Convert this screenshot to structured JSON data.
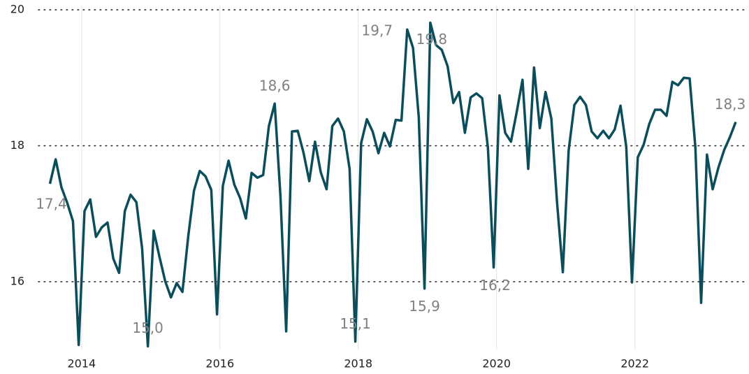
{
  "chart_data": {
    "type": "line",
    "x": [
      2013.542,
      2013.625,
      2013.708,
      2013.792,
      2013.875,
      2013.958,
      2014.042,
      2014.125,
      2014.208,
      2014.292,
      2014.375,
      2014.458,
      2014.542,
      2014.625,
      2014.708,
      2014.792,
      2014.875,
      2014.958,
      2015.042,
      2015.125,
      2015.208,
      2015.292,
      2015.375,
      2015.458,
      2015.542,
      2015.625,
      2015.708,
      2015.792,
      2015.875,
      2015.958,
      2016.042,
      2016.125,
      2016.208,
      2016.292,
      2016.375,
      2016.458,
      2016.542,
      2016.625,
      2016.708,
      2016.792,
      2016.875,
      2016.958,
      2017.042,
      2017.125,
      2017.208,
      2017.292,
      2017.375,
      2017.458,
      2017.542,
      2017.625,
      2017.708,
      2017.792,
      2017.875,
      2017.958,
      2018.042,
      2018.125,
      2018.208,
      2018.292,
      2018.375,
      2018.458,
      2018.542,
      2018.625,
      2018.708,
      2018.792,
      2018.875,
      2018.958,
      2019.042,
      2019.125,
      2019.208,
      2019.292,
      2019.375,
      2019.458,
      2019.542,
      2019.625,
      2019.708,
      2019.792,
      2019.875,
      2019.958,
      2020.042,
      2020.125,
      2020.208,
      2020.292,
      2020.375,
      2020.458,
      2020.542,
      2020.625,
      2020.708,
      2020.792,
      2020.875,
      2020.958,
      2021.042,
      2021.125,
      2021.208,
      2021.292,
      2021.375,
      2021.458,
      2021.542,
      2021.625,
      2021.708,
      2021.792,
      2021.875,
      2021.958,
      2022.042,
      2022.125,
      2022.208,
      2022.292,
      2022.375,
      2022.458,
      2022.542,
      2022.625,
      2022.708,
      2022.792,
      2022.875,
      2022.958,
      2023.042,
      2023.125,
      2023.208,
      2023.292,
      2023.375,
      2023.458
    ],
    "series": [
      {
        "color": "#0b4d5a",
        "values": [
          17.44,
          17.8,
          17.39,
          17.16,
          16.89,
          15.07,
          17.04,
          17.21,
          16.66,
          16.8,
          16.87,
          16.34,
          16.13,
          17.04,
          17.28,
          17.17,
          16.49,
          15.05,
          16.75,
          16.37,
          16.01,
          15.77,
          15.98,
          15.85,
          16.67,
          17.34,
          17.63,
          17.55,
          17.35,
          15.52,
          17.41,
          17.78,
          17.43,
          17.23,
          16.93,
          17.6,
          17.53,
          17.57,
          18.29,
          18.62,
          17.26,
          15.27,
          18.21,
          18.22,
          17.9,
          17.48,
          18.06,
          17.61,
          17.36,
          18.29,
          18.4,
          18.21,
          17.66,
          15.12,
          18.04,
          18.39,
          18.21,
          17.89,
          18.19,
          17.99,
          18.38,
          18.37,
          19.71,
          19.44,
          18.42,
          15.9,
          19.81,
          19.48,
          19.41,
          19.17,
          18.63,
          18.79,
          18.19,
          18.71,
          18.77,
          18.7,
          17.97,
          16.21,
          18.74,
          18.19,
          18.06,
          18.5,
          18.97,
          17.66,
          19.15,
          18.26,
          18.79,
          18.4,
          17.16,
          16.14,
          17.93,
          18.6,
          18.72,
          18.6,
          18.21,
          18.11,
          18.22,
          18.11,
          18.24,
          18.59,
          17.99,
          15.99,
          17.83,
          18.01,
          18.32,
          18.53,
          18.53,
          18.44,
          18.94,
          18.89,
          19.0,
          18.99,
          17.97,
          15.69,
          17.87,
          17.36,
          17.68,
          17.94,
          18.13,
          18.35
        ],
        "value_labels": [
          "17,4",
          null,
          null,
          null,
          null,
          null,
          null,
          null,
          null,
          null,
          null,
          null,
          null,
          null,
          null,
          null,
          null,
          "15,0",
          null,
          null,
          null,
          null,
          null,
          null,
          null,
          null,
          null,
          null,
          null,
          null,
          null,
          null,
          null,
          null,
          null,
          null,
          null,
          null,
          null,
          "18,6",
          null,
          null,
          null,
          null,
          null,
          null,
          null,
          null,
          null,
          null,
          null,
          null,
          null,
          "15,1",
          null,
          null,
          null,
          null,
          null,
          null,
          null,
          null,
          "19,7",
          null,
          null,
          "15,9",
          "19,8",
          null,
          null,
          null,
          null,
          null,
          null,
          null,
          null,
          null,
          null,
          "16,2",
          null,
          null,
          null,
          null,
          null,
          null,
          null,
          null,
          null,
          null,
          null,
          null,
          null,
          null,
          null,
          null,
          null,
          null,
          null,
          null,
          null,
          null,
          null,
          null,
          null,
          null,
          null,
          null,
          null,
          null,
          null,
          null,
          null,
          null,
          null,
          null,
          null,
          null,
          null,
          null,
          null,
          "18,3"
        ]
      }
    ],
    "xlim": [
      2012.82,
      2023.65
    ],
    "xticks": [
      2014,
      2016,
      2018,
      2020,
      2022
    ],
    "ylim": [
      15,
      20
    ],
    "yticks": [
      16,
      18,
      20
    ],
    "grid": true
  }
}
